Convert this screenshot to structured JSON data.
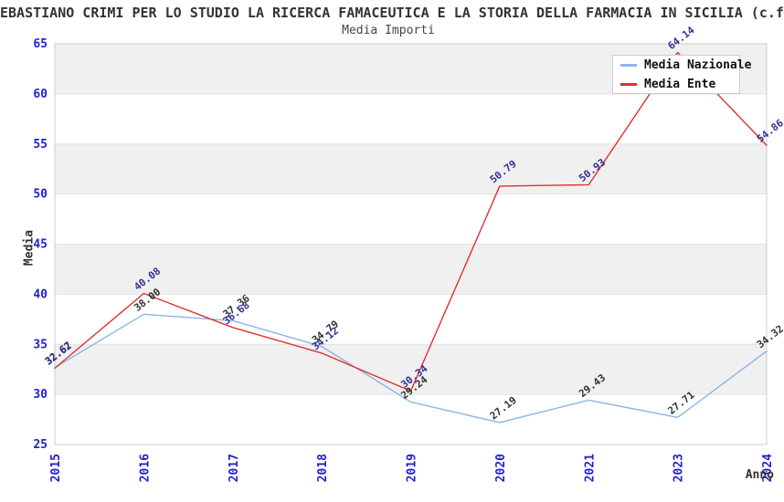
{
  "title": "EBASTIANO CRIMI PER LO STUDIO LA RICERCA FAMACEUTICA E LA STORIA DELLA FARMACIA IN SICILIA (c.f",
  "subtitle": "Media Importi",
  "axes": {
    "y_label": "Media",
    "x_label": "Anno",
    "y_ticks": [
      25,
      30,
      35,
      40,
      45,
      50,
      55,
      60,
      65
    ]
  },
  "legend": {
    "items": [
      {
        "label": "Media Nazionale",
        "color": "#8ab6e3"
      },
      {
        "label": "Media Ente",
        "color": "#e03030"
      }
    ]
  },
  "colors": {
    "tick_label": "#2222cc",
    "band_gray": "#f0f0f0",
    "grid_line": "#e2e2e2",
    "plot_border": "#cccccc",
    "nazionale_line": "#8ab6e3",
    "ente_line": "#e03030",
    "nazionale_label": "#333333",
    "ente_label": "#333399"
  },
  "chart_data": {
    "type": "line",
    "title": "Media Importi",
    "xlabel": "Anno",
    "ylabel": "Media",
    "ylim": [
      25,
      65
    ],
    "grid": "horizontal-bands-every-5",
    "legend_position": "top-right",
    "categories": [
      "2015",
      "2016",
      "2017",
      "2018",
      "2019",
      "2020",
      "2021",
      "2023",
      "2024"
    ],
    "series": [
      {
        "name": "Media Nazionale",
        "color": "#8ab6e3",
        "label_color": "#333333",
        "values": [
          32.67,
          38.0,
          37.36,
          34.79,
          29.24,
          27.19,
          29.43,
          27.71,
          34.32
        ],
        "labels": [
          "32.67",
          "38.00",
          "37.36",
          "34.79",
          "29.24",
          "27.19",
          "29.43",
          "27.71",
          "34.32"
        ]
      },
      {
        "name": "Media Ente",
        "color": "#e03030",
        "label_color": "#333399",
        "values": [
          32.62,
          40.08,
          36.68,
          34.12,
          30.34,
          50.79,
          50.93,
          64.14,
          54.86
        ],
        "labels": [
          "32.62",
          "40.08",
          "36.68",
          "34.12",
          "30.34",
          "50.79",
          "50.93",
          "64.14",
          "54.86"
        ]
      }
    ]
  }
}
